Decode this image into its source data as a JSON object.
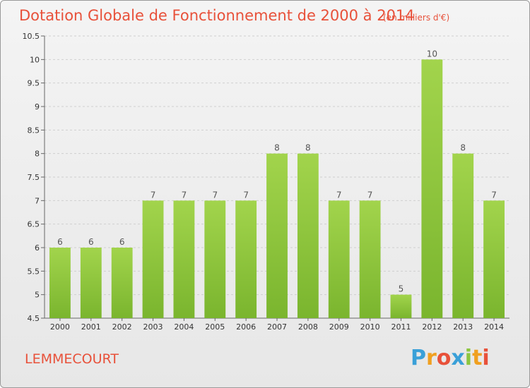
{
  "chart_data": {
    "type": "bar",
    "title": "Dotation Globale de Fonctionnement de 2000 à 2014",
    "subtitle": "(en milliers d'€)",
    "categories": [
      "2000",
      "2001",
      "2002",
      "2003",
      "2004",
      "2005",
      "2006",
      "2007",
      "2008",
      "2009",
      "2010",
      "2011",
      "2012",
      "2013",
      "2014"
    ],
    "values": [
      6,
      6,
      6,
      7,
      7,
      7,
      7,
      8,
      8,
      7,
      7,
      5,
      10,
      8,
      7
    ],
    "ylim": [
      4.5,
      10.5
    ],
    "yticks": [
      4.5,
      5,
      5.5,
      6,
      6.5,
      7,
      7.5,
      8,
      8.5,
      9,
      9.5,
      10,
      10.5
    ],
    "grid": true,
    "xlabel": "",
    "ylabel": "",
    "bar_color": "#7ab52e",
    "bar_color_light": "#a2d44c",
    "title_color": "#e8513a"
  },
  "commune": "LEMMECOURT",
  "brand": {
    "letters": [
      "P",
      "r",
      "o",
      "x",
      "i",
      "t",
      "i"
    ],
    "colors": [
      "#3aa0d8",
      "#f0a020",
      "#e8513a",
      "#3aa0d8",
      "#8cc63f",
      "#f0a020",
      "#e8513a"
    ]
  }
}
